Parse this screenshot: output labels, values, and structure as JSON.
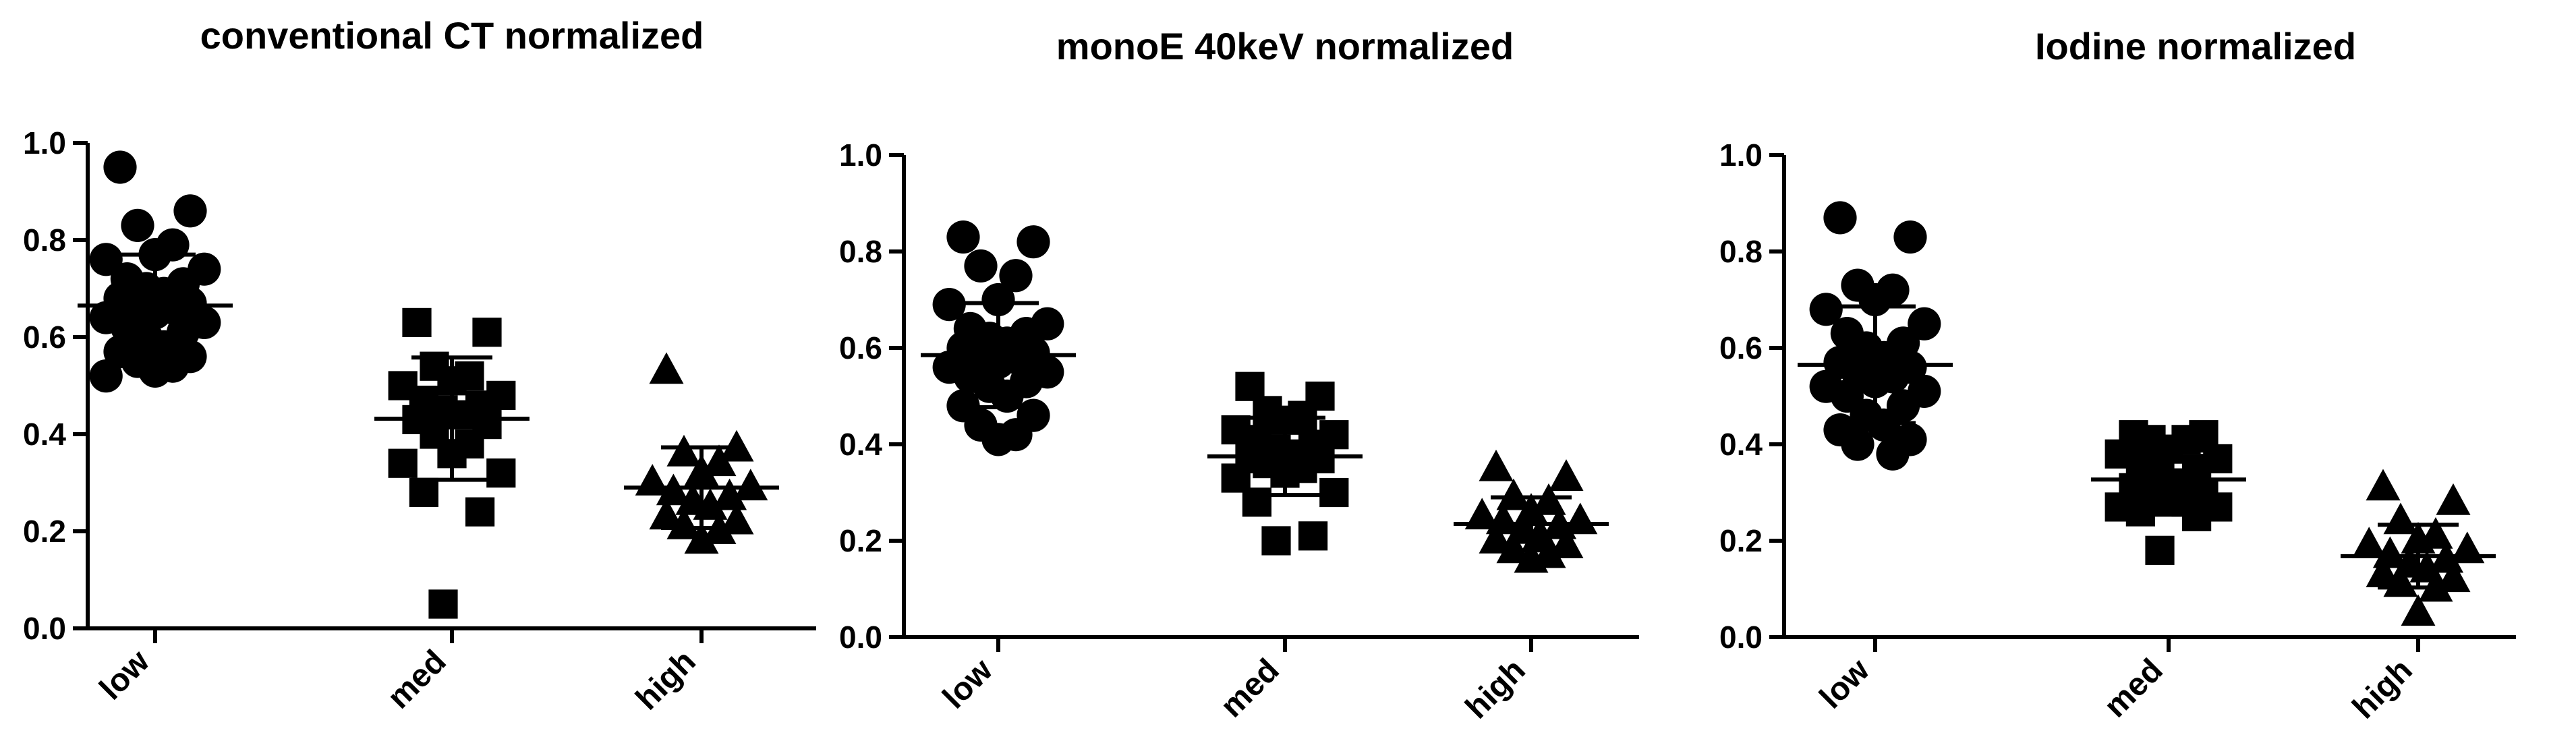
{
  "chart_data": [
    {
      "type": "scatter",
      "subtype": "dot-plot with mean and SD",
      "title": "conventional CT normalized",
      "categories": [
        "low",
        "med",
        "high"
      ],
      "ylim": [
        0,
        1.0
      ],
      "yticks": [
        "0.0",
        "0.2",
        "0.4",
        "0.6",
        "0.8",
        "1.0"
      ],
      "grid": false,
      "series": [
        {
          "category": "low",
          "marker": "circle",
          "values": [
            0.95,
            0.86,
            0.83,
            0.79,
            0.77,
            0.76,
            0.74,
            0.72,
            0.71,
            0.7,
            0.69,
            0.68,
            0.67,
            0.66,
            0.66,
            0.65,
            0.64,
            0.63,
            0.62,
            0.61,
            0.6,
            0.58,
            0.57,
            0.56,
            0.55,
            0.54,
            0.53,
            0.52
          ],
          "mean": 0.665,
          "sd": 0.105
        },
        {
          "category": "med",
          "marker": "square",
          "values": [
            0.63,
            0.61,
            0.54,
            0.52,
            0.51,
            0.5,
            0.48,
            0.47,
            0.46,
            0.45,
            0.44,
            0.43,
            0.42,
            0.4,
            0.38,
            0.36,
            0.34,
            0.32,
            0.28,
            0.24,
            0.05
          ],
          "mean": 0.432,
          "sd": 0.126
        },
        {
          "category": "high",
          "marker": "triangle",
          "values": [
            0.53,
            0.37,
            0.36,
            0.34,
            0.32,
            0.3,
            0.29,
            0.28,
            0.27,
            0.26,
            0.25,
            0.23,
            0.22,
            0.21,
            0.2,
            0.18
          ],
          "mean": 0.29,
          "sd": 0.083
        }
      ]
    },
    {
      "type": "scatter",
      "subtype": "dot-plot with mean and SD",
      "title": "monoE 40keV normalized",
      "categories": [
        "low",
        "med",
        "high"
      ],
      "ylim": [
        0,
        1.0
      ],
      "yticks": [
        "0.0",
        "0.2",
        "0.4",
        "0.6",
        "0.8",
        "1.0"
      ],
      "grid": false,
      "series": [
        {
          "category": "low",
          "marker": "circle",
          "values": [
            0.83,
            0.82,
            0.77,
            0.75,
            0.7,
            0.69,
            0.65,
            0.64,
            0.63,
            0.62,
            0.61,
            0.6,
            0.59,
            0.58,
            0.58,
            0.57,
            0.56,
            0.55,
            0.54,
            0.53,
            0.52,
            0.5,
            0.48,
            0.46,
            0.44,
            0.42,
            0.41
          ],
          "mean": 0.585,
          "sd": 0.108
        },
        {
          "category": "med",
          "marker": "square",
          "values": [
            0.52,
            0.5,
            0.47,
            0.46,
            0.45,
            0.43,
            0.42,
            0.41,
            0.4,
            0.39,
            0.38,
            0.37,
            0.37,
            0.36,
            0.35,
            0.34,
            0.33,
            0.3,
            0.28,
            0.21,
            0.2
          ],
          "mean": 0.375,
          "sd": 0.08
        },
        {
          "category": "high",
          "marker": "triangle",
          "values": [
            0.35,
            0.33,
            0.29,
            0.28,
            0.26,
            0.25,
            0.24,
            0.24,
            0.23,
            0.22,
            0.21,
            0.2,
            0.19,
            0.18,
            0.17,
            0.16
          ],
          "mean": 0.235,
          "sd": 0.055
        }
      ]
    },
    {
      "type": "scatter",
      "subtype": "dot-plot with mean and SD",
      "title": "Iodine normalized",
      "categories": [
        "low",
        "med",
        "high"
      ],
      "ylim": [
        0,
        1.0
      ],
      "yticks": [
        "0.0",
        "0.2",
        "0.4",
        "0.6",
        "0.8",
        "1.0"
      ],
      "grid": false,
      "series": [
        {
          "category": "low",
          "marker": "circle",
          "values": [
            0.87,
            0.83,
            0.73,
            0.72,
            0.7,
            0.68,
            0.65,
            0.63,
            0.61,
            0.6,
            0.58,
            0.57,
            0.56,
            0.55,
            0.54,
            0.53,
            0.52,
            0.51,
            0.5,
            0.48,
            0.46,
            0.44,
            0.43,
            0.41,
            0.4,
            0.38
          ],
          "mean": 0.565,
          "sd": 0.121
        },
        {
          "category": "med",
          "marker": "square",
          "values": [
            0.42,
            0.42,
            0.41,
            0.41,
            0.39,
            0.38,
            0.37,
            0.36,
            0.35,
            0.33,
            0.32,
            0.31,
            0.3,
            0.29,
            0.28,
            0.28,
            0.27,
            0.27,
            0.26,
            0.25,
            0.18
          ],
          "mean": 0.327,
          "sd": 0.06
        },
        {
          "category": "high",
          "marker": "triangle",
          "values": [
            0.31,
            0.28,
            0.24,
            0.21,
            0.2,
            0.19,
            0.18,
            0.17,
            0.16,
            0.15,
            0.14,
            0.13,
            0.12,
            0.11,
            0.1,
            0.05
          ],
          "mean": 0.168,
          "sd": 0.065
        }
      ]
    }
  ]
}
